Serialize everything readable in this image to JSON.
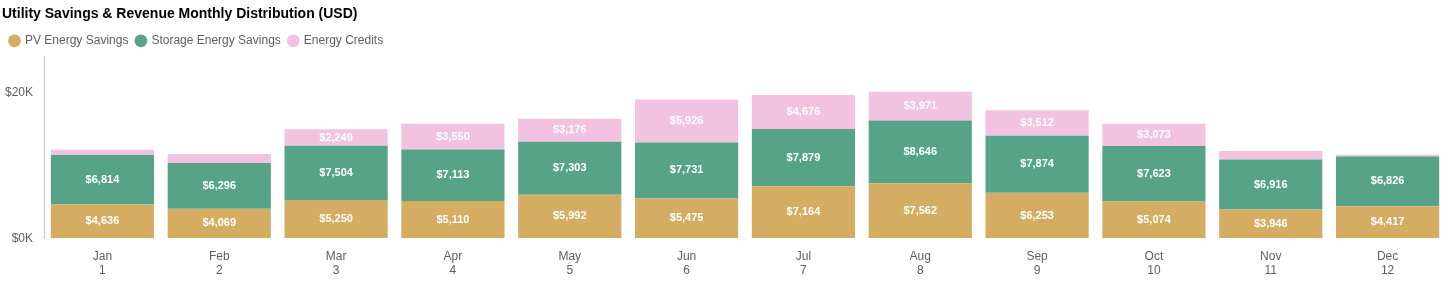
{
  "chart_data": {
    "type": "bar",
    "title": "Utility Savings & Revenue Monthly Distribution (USD)",
    "categories": [
      [
        "Jan",
        "1"
      ],
      [
        "Feb",
        "2"
      ],
      [
        "Mar",
        "3"
      ],
      [
        "Apr",
        "4"
      ],
      [
        "May",
        "5"
      ],
      [
        "Jun",
        "6"
      ],
      [
        "Jul",
        "7"
      ],
      [
        "Aug",
        "8"
      ],
      [
        "Sep",
        "9"
      ],
      [
        "Oct",
        "10"
      ],
      [
        "Nov",
        "11"
      ],
      [
        "Dec",
        "12"
      ]
    ],
    "series": [
      {
        "name": "PV Energy Savings",
        "color": "#d4ac62",
        "values": [
          4636,
          4069,
          5250,
          5110,
          5992,
          5475,
          7164,
          7562,
          6253,
          5074,
          3946,
          4417
        ],
        "value_labels": [
          "$4,636",
          "$4,069",
          "$5,250",
          "$5,110",
          "$5,992",
          "$5,475",
          "$7,164",
          "$7,562",
          "$6,253",
          "$5,074",
          "$3,946",
          "$4,417"
        ]
      },
      {
        "name": "Storage Energy Savings",
        "color": "#57a388",
        "values": [
          6814,
          6296,
          7504,
          7113,
          7303,
          7731,
          7879,
          8646,
          7874,
          7623,
          6916,
          6826
        ],
        "value_labels": [
          "$6,814",
          "$6,296",
          "$7,504",
          "$7,113",
          "$7,303",
          "$7,731",
          "$7,879",
          "$8,646",
          "$7,874",
          "$7,623",
          "$6,916",
          "$6,826"
        ]
      },
      {
        "name": "Energy Credits",
        "color": "#f1c3e1",
        "values": [
          750,
          1250,
          2249,
          3550,
          3176,
          5926,
          4676,
          3971,
          3512,
          3073,
          1150,
          250
        ],
        "value_labels": [
          null,
          null,
          "$2,249",
          "$3,550",
          "$3,176",
          "$5,926",
          "$4,676",
          "$3,971",
          "$3,512",
          "$3,073",
          null,
          null
        ]
      }
    ],
    "ylim": [
      0,
      25000
    ],
    "yticks": [
      {
        "value": 0,
        "label": "$0K"
      },
      {
        "value": 20000,
        "label": "$20K"
      }
    ],
    "stacked": true,
    "grid": false,
    "legend": "top-left",
    "data_labels": true
  }
}
